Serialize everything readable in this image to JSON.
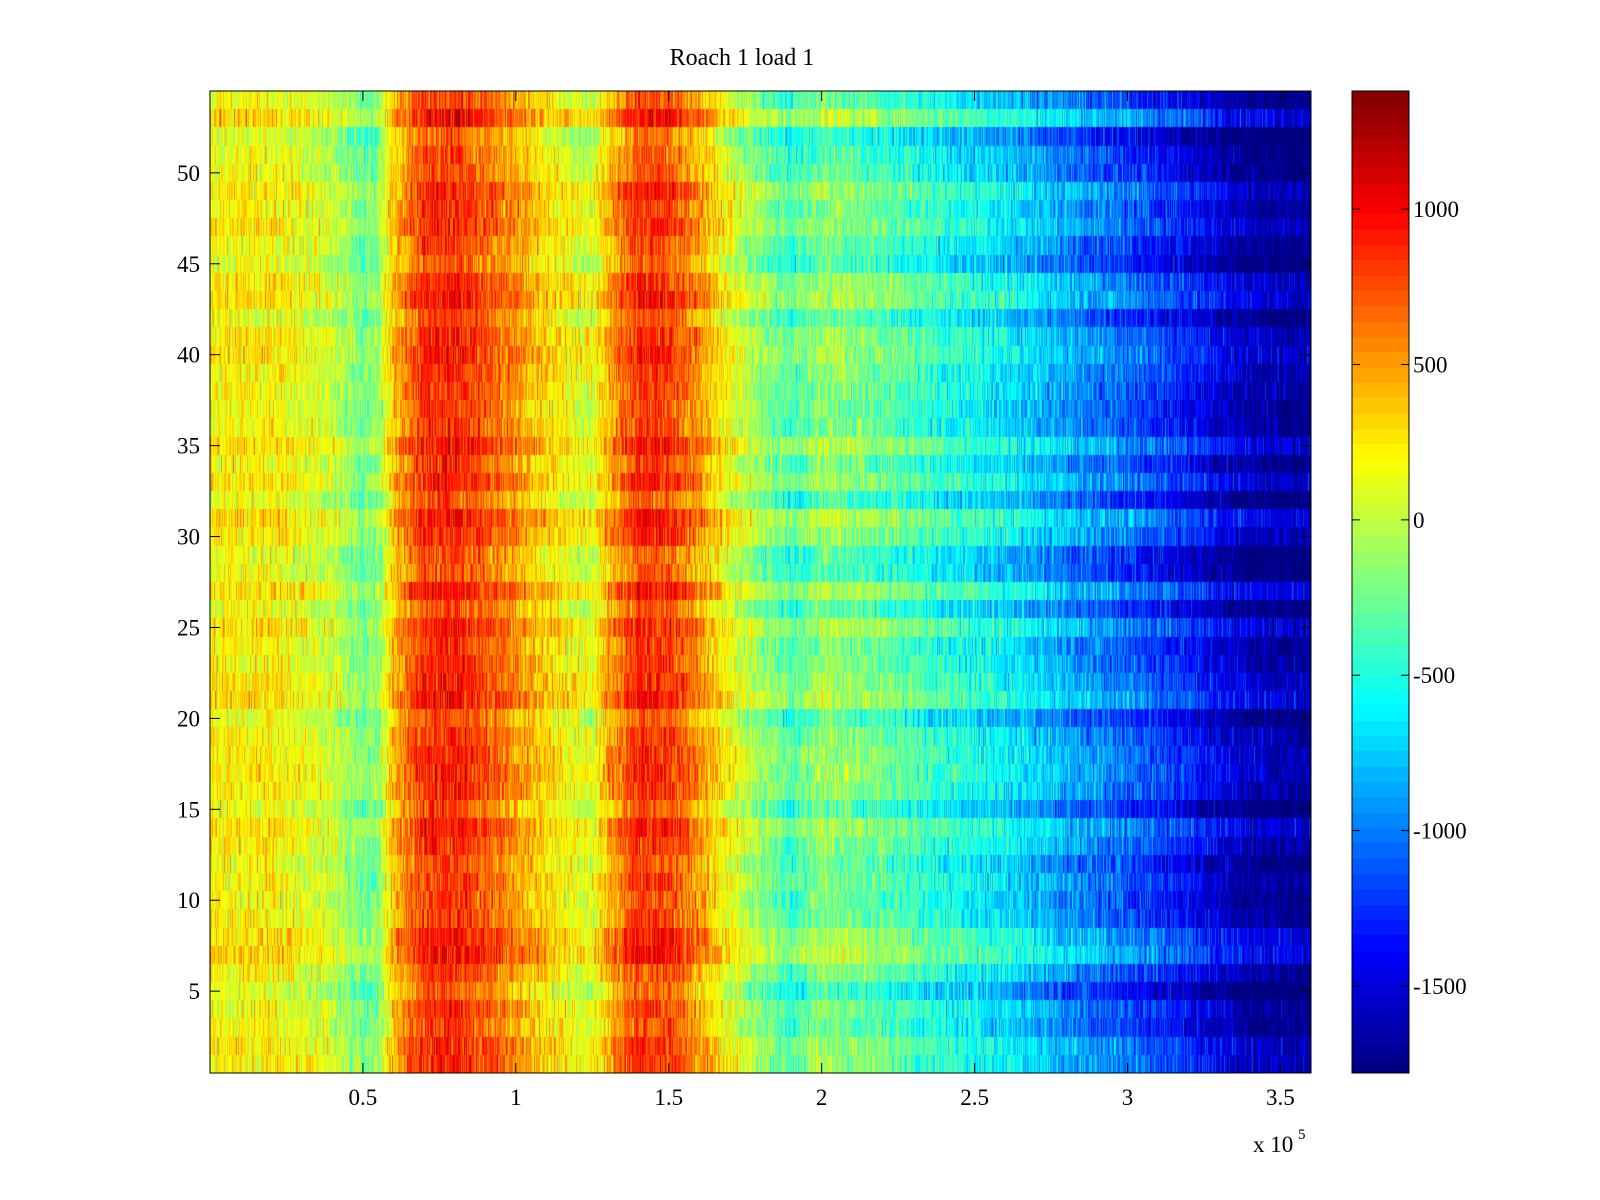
{
  "chart_data": {
    "type": "heatmap",
    "title": "Roach 1 load 1",
    "colormap": "jet",
    "x_range": [
      0,
      360000
    ],
    "y_range": [
      0.5,
      54.5
    ],
    "clim": [
      -1780,
      1380
    ],
    "rows": 54,
    "x_axis": {
      "ticks": [
        0.5,
        1,
        1.5,
        2,
        2.5,
        3,
        3.5
      ],
      "tick_labels": [
        "0.5",
        "1",
        "1.5",
        "2",
        "2.5",
        "3",
        "3.5"
      ],
      "scale_prefix": "x 10",
      "scale_exponent": "5",
      "range": [
        0,
        3.6
      ]
    },
    "y_axis": {
      "ticks": [
        5,
        10,
        15,
        20,
        25,
        30,
        35,
        40,
        45,
        50
      ],
      "tick_labels": [
        "5",
        "10",
        "15",
        "20",
        "25",
        "30",
        "35",
        "40",
        "45",
        "50"
      ]
    },
    "colorbar": {
      "ticks": [
        1000,
        500,
        0,
        -500,
        -1000,
        -1500
      ],
      "tick_labels": [
        "1000",
        "500",
        "0",
        "-500",
        "-1000",
        "-1500"
      ],
      "range": [
        -1780,
        1380
      ]
    },
    "mean_profile": {
      "x": [
        0,
        0.2,
        0.4,
        0.5,
        0.55,
        0.6,
        0.7,
        0.8,
        0.9,
        1.0,
        1.1,
        1.2,
        1.25,
        1.3,
        1.4,
        1.5,
        1.6,
        1.7,
        1.8,
        1.9,
        2.0,
        2.2,
        2.4,
        2.6,
        2.8,
        3.0,
        3.2,
        3.4,
        3.6
      ],
      "value": [
        200,
        230,
        30,
        -250,
        -150,
        400,
        820,
        880,
        700,
        520,
        300,
        130,
        80,
        420,
        830,
        800,
        500,
        130,
        -150,
        -380,
        -150,
        -300,
        -500,
        -650,
        -900,
        -1100,
        -1350,
        -1650,
        -1750
      ]
    }
  }
}
